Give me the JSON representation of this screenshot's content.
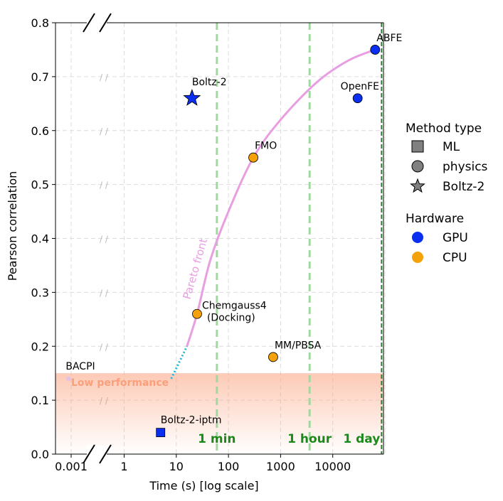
{
  "chart_data": {
    "type": "scatter",
    "xlabel": "Time (s) [log scale]",
    "ylabel": "Pearson correlation",
    "x_scale": "log (broken axis)",
    "ylim": [
      0,
      0.8
    ],
    "grid": true,
    "legend_position": "right",
    "x_tick_labels": [
      "0.001",
      "1",
      "10",
      "100",
      "1000",
      "10000"
    ],
    "y_tick_labels": [
      "0.0",
      "0.1",
      "0.2",
      "0.3",
      "0.4",
      "0.5",
      "0.6",
      "0.7",
      "0.8"
    ],
    "colors": {
      "GPU": "#0a2ff0",
      "CPU": "#f5a20a",
      "pareto": "#e89ee0",
      "pareto_extension": "#1ab5d6",
      "time_marker": "#9fd9a0",
      "time_label": "#1a8a1a",
      "low_perf": "#fb9f7a"
    },
    "points": [
      {
        "label": "BACPI",
        "x": 0.0005,
        "y": 0.14,
        "method": "ML",
        "hardware": ""
      },
      {
        "label": "Boltz-2-iptm",
        "x": 5,
        "y": 0.04,
        "method": "ML",
        "hardware": "GPU"
      },
      {
        "label": "Boltz-2",
        "x": 20,
        "y": 0.66,
        "method": "Boltz-2",
        "hardware": "GPU"
      },
      {
        "label": "Chemgauss4\n(Docking)",
        "x": 25,
        "y": 0.26,
        "method": "physics",
        "hardware": "CPU"
      },
      {
        "label": "FMO",
        "x": 300,
        "y": 0.55,
        "method": "physics",
        "hardware": "CPU"
      },
      {
        "label": "MM/PBSA",
        "x": 720,
        "y": 0.18,
        "method": "physics",
        "hardware": "CPU"
      },
      {
        "label": "OpenFE",
        "x": 30000,
        "y": 0.66,
        "method": "physics",
        "hardware": "GPU"
      },
      {
        "label": "ABFE",
        "x": 65000,
        "y": 0.75,
        "method": "physics",
        "hardware": "GPU"
      }
    ],
    "time_markers": [
      {
        "label": "1 min",
        "x": 60
      },
      {
        "label": "1 hour",
        "x": 3600
      },
      {
        "label": "1 day",
        "x": 86400
      }
    ],
    "pareto_front": {
      "label": "Pareto front",
      "points": [
        [
          16,
          0.2
        ],
        [
          25,
          0.26
        ],
        [
          45,
          0.36
        ],
        [
          100,
          0.45
        ],
        [
          300,
          0.55
        ],
        [
          1000,
          0.62
        ],
        [
          5000,
          0.69
        ],
        [
          20000,
          0.73
        ],
        [
          65000,
          0.75
        ]
      ],
      "extension": [
        [
          8,
          0.14
        ],
        [
          16,
          0.2
        ]
      ]
    },
    "low_performance_band": {
      "label": "Low performance",
      "y_range": [
        0,
        0.15
      ]
    },
    "legend": {
      "method_title": "Method type",
      "method_entries": [
        {
          "label": "ML",
          "marker": "square"
        },
        {
          "label": "physics",
          "marker": "circle"
        },
        {
          "label": "Boltz-2",
          "marker": "star"
        }
      ],
      "hardware_title": "Hardware",
      "hardware_entries": [
        {
          "label": "GPU",
          "color": "#0a2ff0"
        },
        {
          "label": "CPU",
          "color": "#f5a20a"
        }
      ]
    }
  }
}
